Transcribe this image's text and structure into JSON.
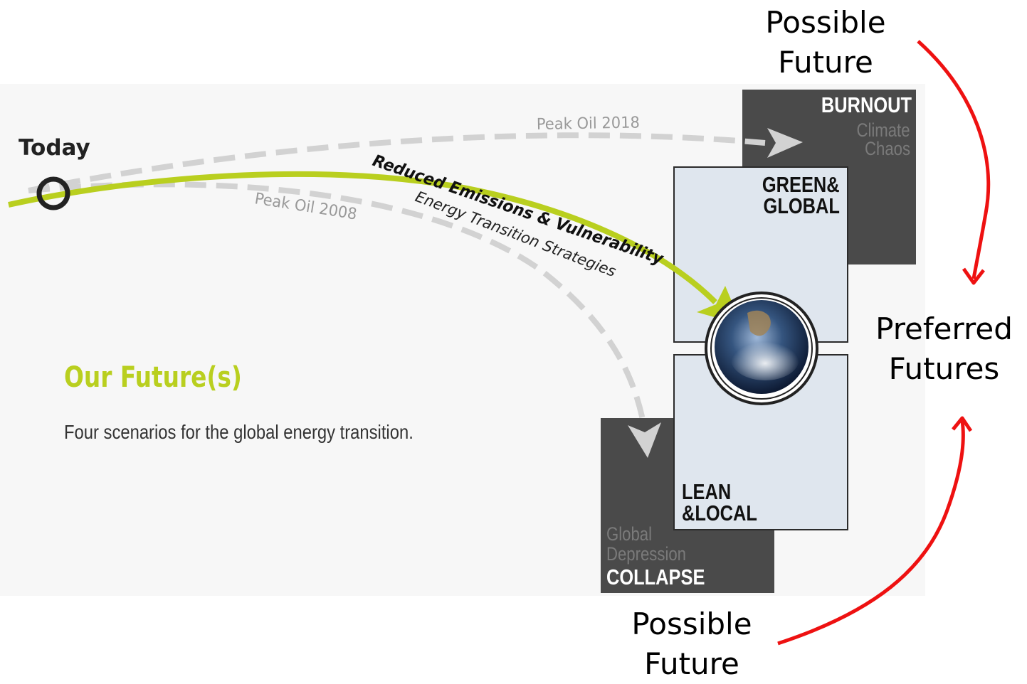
{
  "labels": {
    "possible_top": "Possible\nFuture",
    "preferred": "Preferred\nFutures",
    "possible_bottom": "Possible\nFuture"
  },
  "figure": {
    "today": "Today",
    "title": "Our Future(s)",
    "subtitle": "Four scenarios for the global energy transition.",
    "path_peak_2018": "Peak Oil 2018",
    "path_peak_2008": "Peak Oil 2008",
    "path_main_bold": "Reduced Emissions & Vulnerability",
    "path_main_sub": "Energy Transition Strategies"
  },
  "scenarios": {
    "burnout": {
      "title": "BURNOUT",
      "sub1": "Climate",
      "sub2": "Chaos"
    },
    "green_global": {
      "title1": "GREEN&",
      "title2": "GLOBAL"
    },
    "lean_local": {
      "title1": "LEAN",
      "title2": "&LOCAL"
    },
    "collapse": {
      "sub1": "Global",
      "sub2": "Depression",
      "title": "COLLAPSE"
    }
  },
  "colors": {
    "accent_green": "#b9cf1f",
    "dashed_gray": "#d2d2d2",
    "dark_box": "#4a4a4a",
    "light_box": "#dfe6ee",
    "red_arrow": "#ee1111"
  }
}
